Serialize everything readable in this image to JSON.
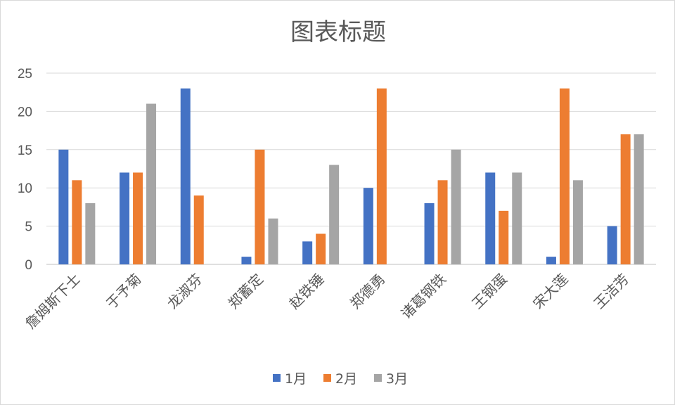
{
  "chart_data": {
    "type": "bar",
    "title": "图表标题",
    "categories": [
      "詹姆斯下士",
      "于予菊",
      "龙淑芬",
      "郑蓄定",
      "赵铁锤",
      "郑德勇",
      "诸葛钢铁",
      "王钢蛋",
      "宋大莲",
      "王洁芳"
    ],
    "series": [
      {
        "name": "1月",
        "color": "#4472C4",
        "values": [
          15,
          12,
          23,
          1,
          3,
          10,
          8,
          12,
          1,
          5
        ]
      },
      {
        "name": "2月",
        "color": "#ED7D31",
        "values": [
          11,
          12,
          9,
          15,
          4,
          23,
          11,
          7,
          23,
          17
        ]
      },
      {
        "name": "3月",
        "color": "#A5A5A5",
        "values": [
          8,
          21,
          null,
          6,
          13,
          null,
          15,
          12,
          11,
          17
        ]
      }
    ],
    "ylim": [
      0,
      25
    ],
    "yticks": [
      0,
      5,
      10,
      15,
      20,
      25
    ],
    "grid": true,
    "legend_position": "bottom",
    "xlabel": "",
    "ylabel": ""
  }
}
